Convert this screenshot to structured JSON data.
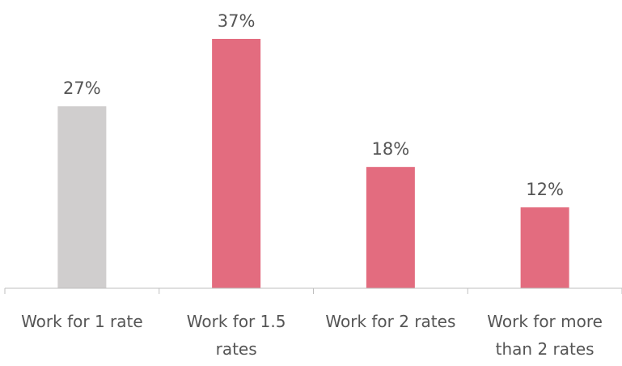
{
  "chart_data": {
    "type": "bar",
    "title": "",
    "xlabel": "",
    "ylabel": "",
    "categories": [
      [
        "Work for 1 rate"
      ],
      [
        "Work for 1.5",
        "rates"
      ],
      [
        "Work for 2 rates"
      ],
      [
        "Work for more",
        "than 2 rates"
      ]
    ],
    "values": [
      27,
      37,
      18,
      12
    ],
    "data_labels": [
      "27%",
      "37%",
      "18%",
      "12%"
    ],
    "bar_colors": [
      "#d0cece",
      "#e36c7f",
      "#e36c7f",
      "#e36c7f"
    ],
    "axis_color": "#bfbfbf",
    "ylim": [
      0,
      37
    ],
    "grid": false,
    "legend": "none"
  }
}
